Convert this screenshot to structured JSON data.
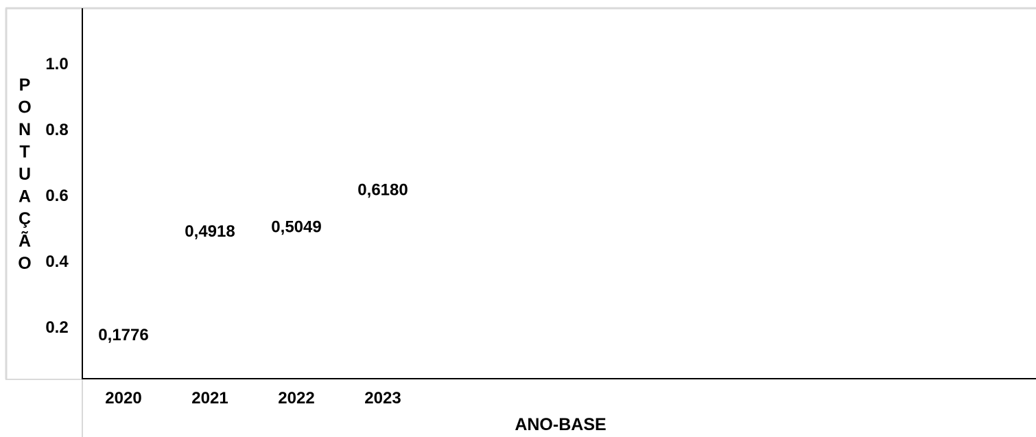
{
  "chart_data": {
    "type": "scatter",
    "categories": [
      "2020",
      "2021",
      "2022",
      "2023"
    ],
    "values": [
      0.1776,
      0.4918,
      0.5049,
      0.618
    ],
    "value_labels": [
      "0,1776",
      "0,4918",
      "0,5049",
      "0,6180"
    ],
    "xlabel": "ANO-BASE",
    "ylabel": "PONTUAÇÃO",
    "yticks": [
      "1.0",
      "0.8",
      "0.6",
      "0.4",
      "0.2"
    ],
    "ytick_values": [
      1.0,
      0.8,
      0.6,
      0.4,
      0.2
    ],
    "ylim": [
      0.0,
      1.1
    ],
    "grid": false,
    "colors": {
      "text": "#000000",
      "axis": "#000000",
      "frame": "#d9d9d9"
    }
  }
}
